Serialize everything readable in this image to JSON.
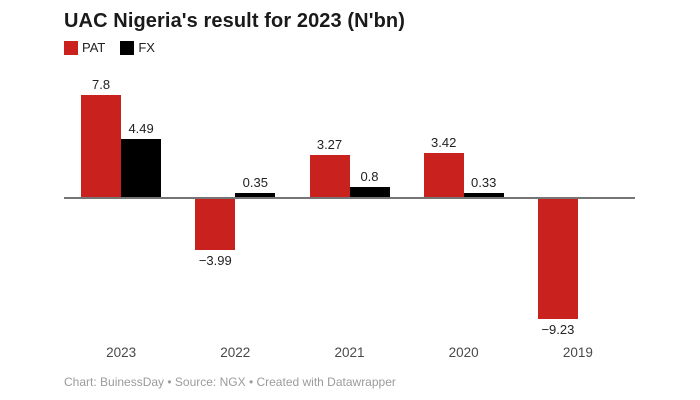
{
  "chart_data": {
    "type": "bar",
    "title": "UAC Nigeria's result for 2023 (N'bn)",
    "categories": [
      "2023",
      "2022",
      "2021",
      "2020",
      "2019"
    ],
    "series": [
      {
        "name": "PAT",
        "color": "#c9211e",
        "values": [
          7.8,
          -3.99,
          3.27,
          3.42,
          -9.23
        ],
        "labels": [
          "7.8",
          "−3.99",
          "3.27",
          "3.42",
          "−9.23"
        ]
      },
      {
        "name": "FX",
        "color": "#000000",
        "values": [
          4.49,
          0.35,
          0.8,
          0.33,
          null
        ],
        "labels": [
          "4.49",
          "0.35",
          "0.8",
          "0.33",
          null
        ]
      }
    ],
    "xlabel": "",
    "ylabel": "",
    "ylim": [
      -10.1,
      10.5
    ],
    "grid": false,
    "legend_position": "top-left",
    "axis_color": "#757575",
    "value_label_color": "#222222"
  },
  "footer": {
    "credit": "Chart: BuinessDay • Source: NGX • Created with Datawrapper"
  }
}
